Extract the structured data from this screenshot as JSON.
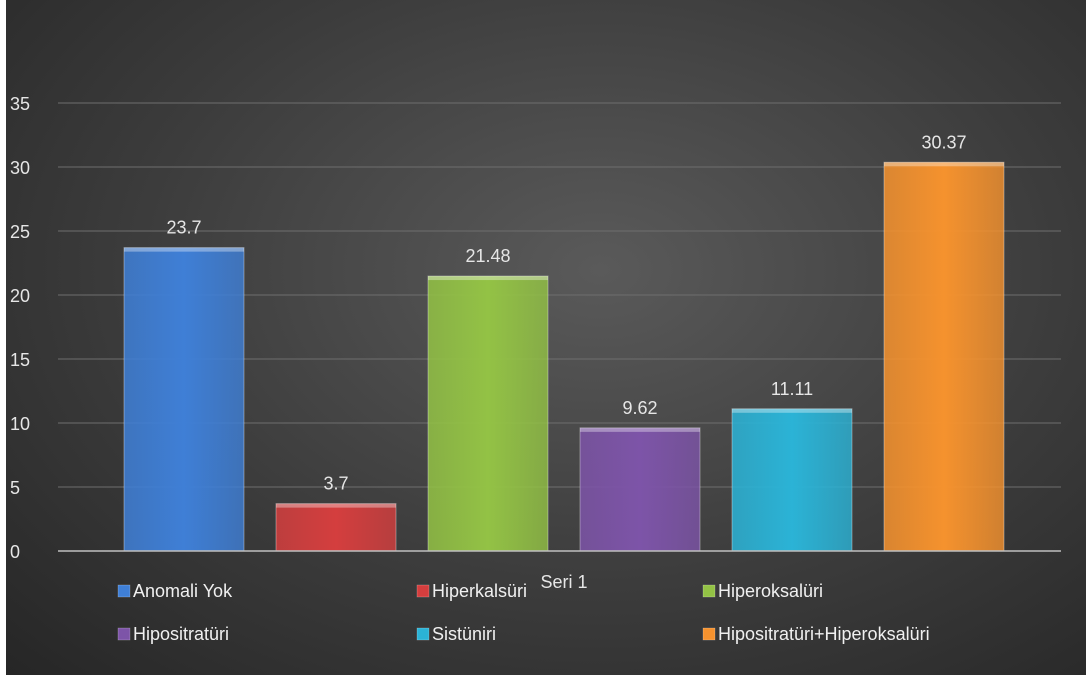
{
  "chart_data": {
    "type": "bar",
    "categories": [
      "Seri 1"
    ],
    "series": [
      {
        "name": "Anomali Yok",
        "values": [
          23.7
        ],
        "color": "#3f7fd6"
      },
      {
        "name": "Hiperkalsüri",
        "values": [
          3.7
        ],
        "color": "#d43e3e"
      },
      {
        "name": "Hiperoksalüri",
        "values": [
          21.48
        ],
        "color": "#93c245"
      },
      {
        "name": "Hipositratüri",
        "values": [
          9.62
        ],
        "color": "#7d54a8"
      },
      {
        "name": "Sistüniri",
        "values": [
          11.11
        ],
        "color": "#2bb3d6"
      },
      {
        "name": "Hipositratüri+Hiperoksalüri",
        "values": [
          30.37
        ],
        "color": "#f5922e"
      }
    ],
    "data_labels": [
      "23.7",
      "3.7",
      "21.48",
      "9.62",
      "11.11",
      "30.37"
    ],
    "ylim": [
      0,
      35
    ],
    "yticks": [
      "0",
      "5",
      "10",
      "15",
      "20",
      "25",
      "30",
      "35"
    ],
    "grid": true,
    "legend_position": "bottom"
  }
}
